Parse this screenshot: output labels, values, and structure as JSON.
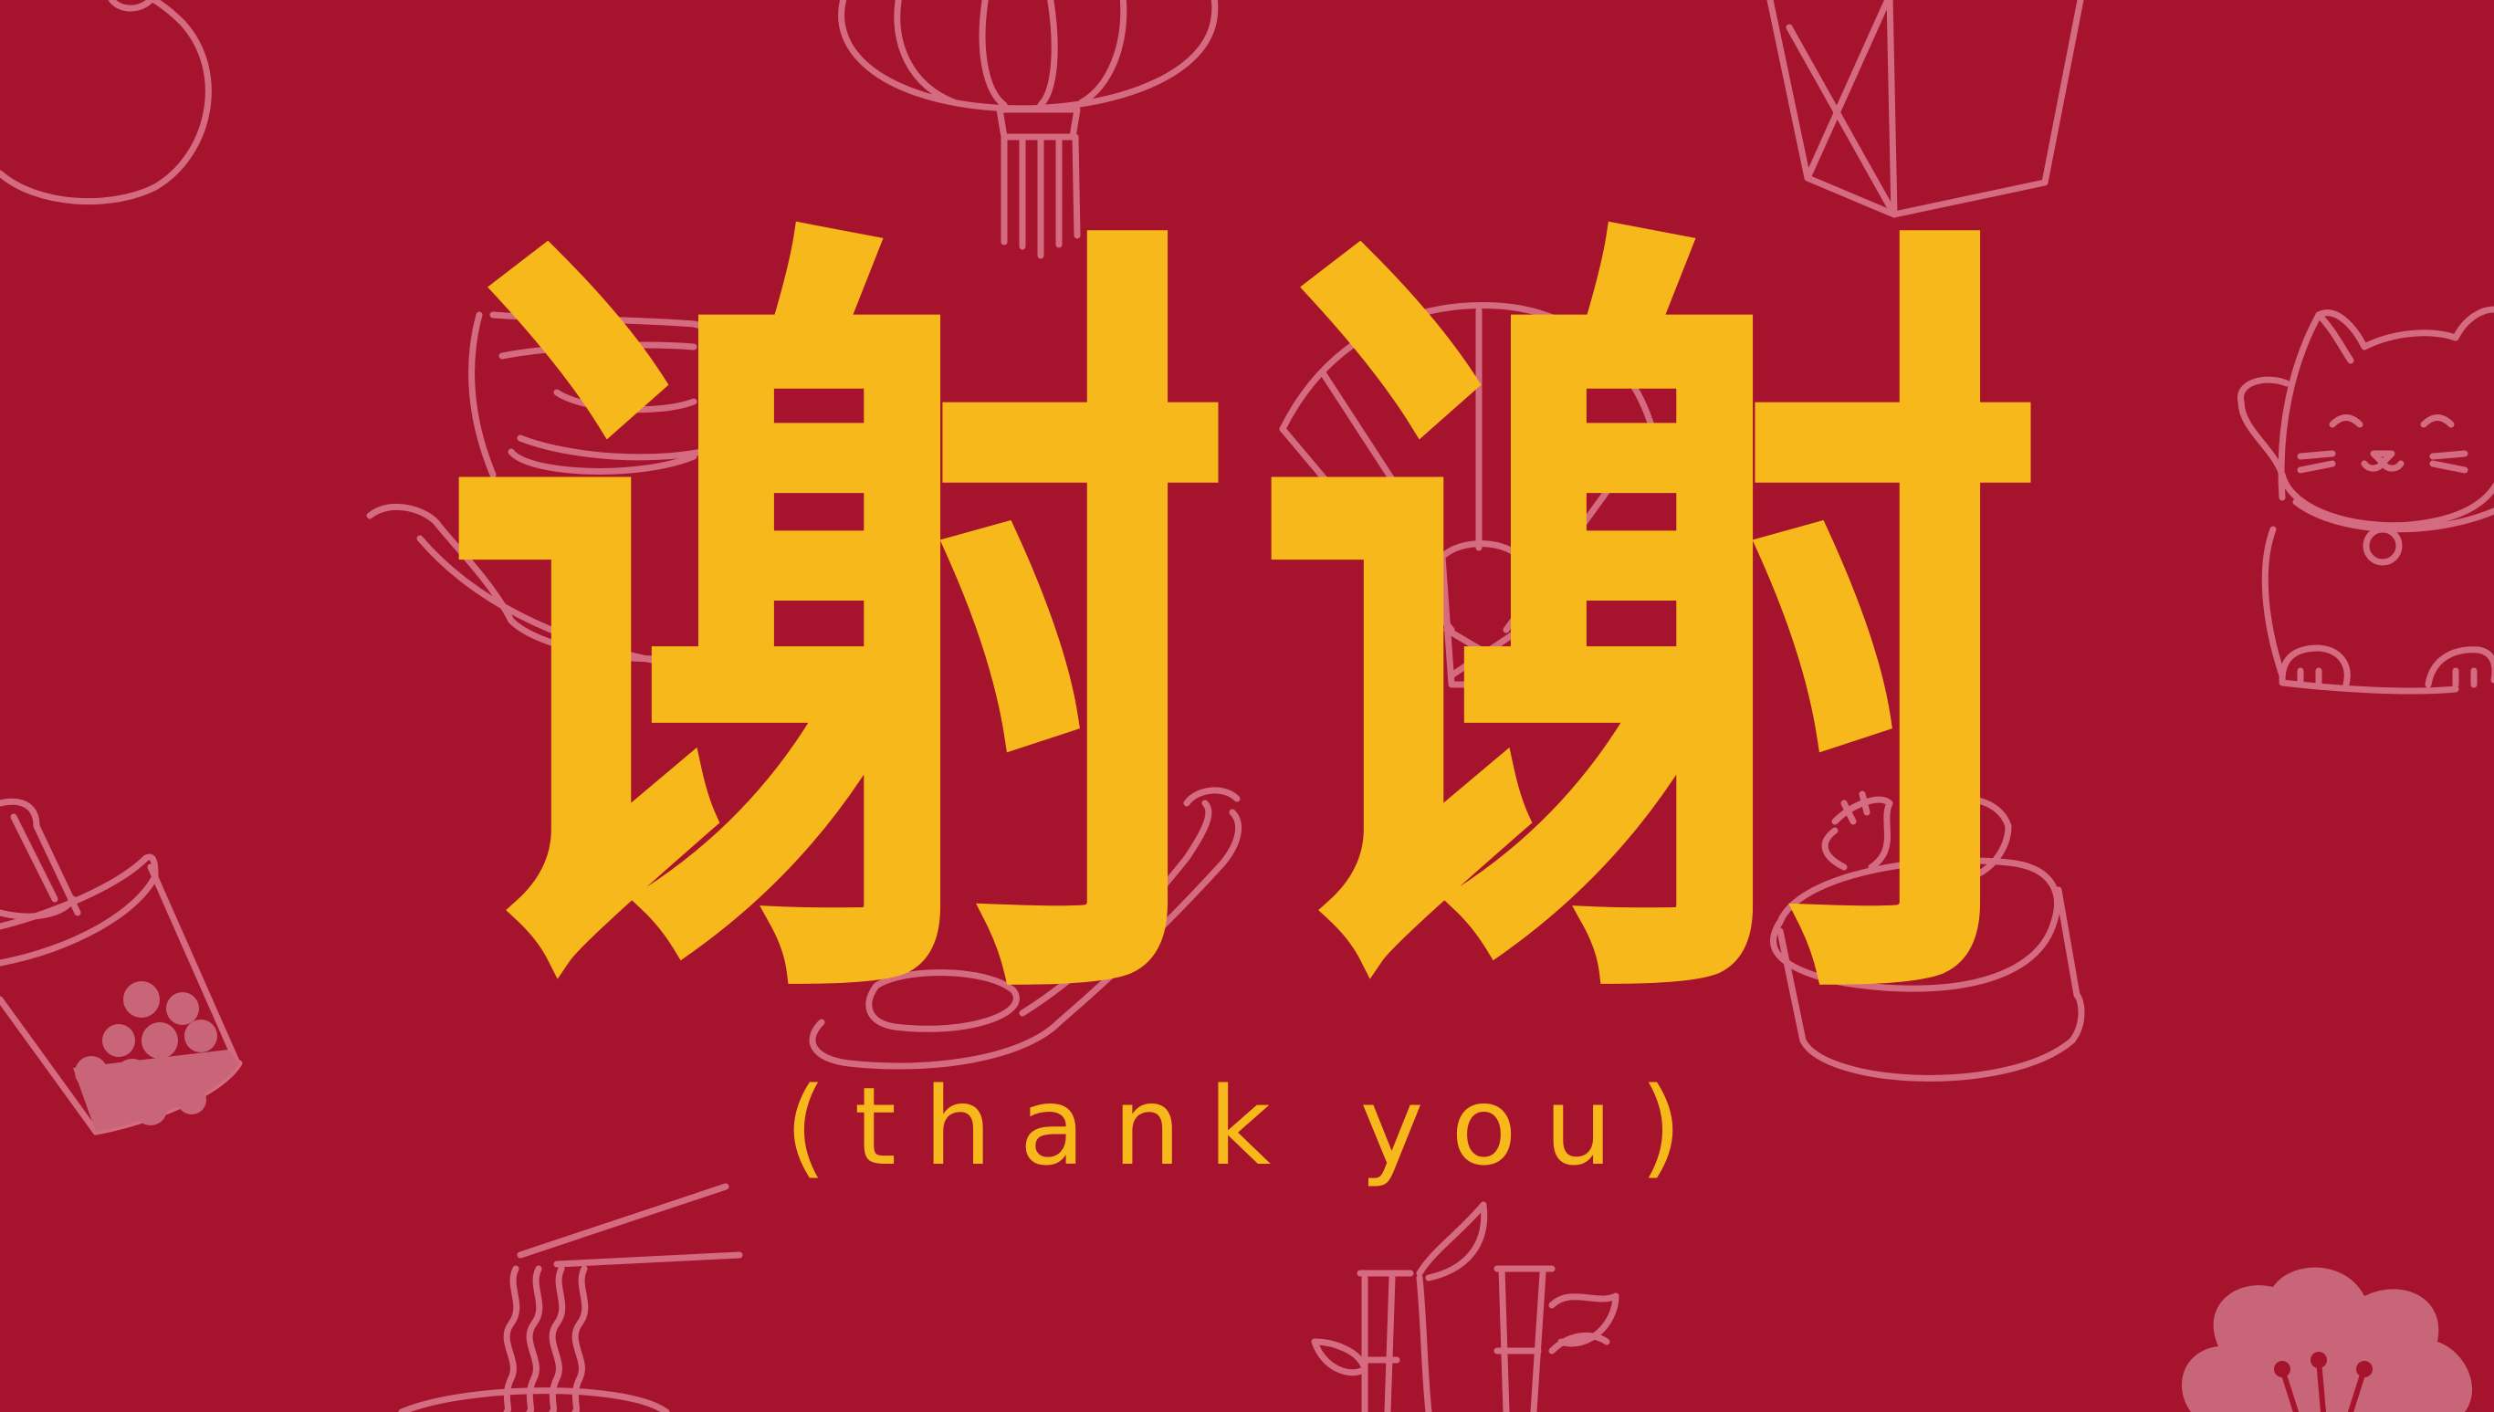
{
  "slide": {
    "headline": "谢谢",
    "subtitle": "(thank you)"
  },
  "theme": {
    "background": "#a6132d",
    "text_color": "#f6b81a",
    "doodle_color": "#d46b80"
  },
  "icons": [
    "orange-icon",
    "lantern-icon",
    "takeout-box-icon",
    "noodle-bowl-icon",
    "folding-fan-icon",
    "lucky-cat-icon",
    "bubble-tea-icon",
    "frying-pan-icon",
    "dumpling-steamer-icon",
    "ramen-chopsticks-icon",
    "bamboo-icon",
    "plum-blossom-icon"
  ]
}
